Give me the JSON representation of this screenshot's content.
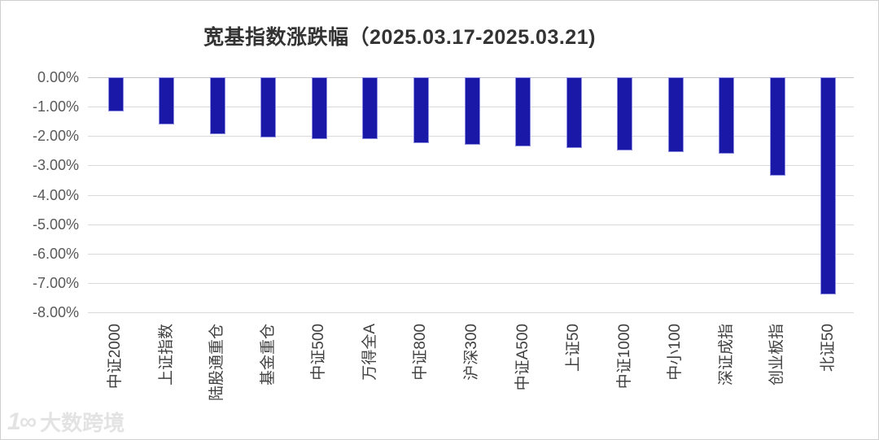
{
  "title": "宽基指数涨跌幅（2025.03.17-2025.03.21)",
  "watermark": {
    "logo": "1∞",
    "text": "大数跨境"
  },
  "chart_data": {
    "type": "bar",
    "title": "宽基指数涨跌幅（2025.03.17-2025.03.21)",
    "categories": [
      "中证2000",
      "上证指数",
      "陆股通重仓",
      "基金重仓",
      "中证500",
      "万得全A",
      "中证800",
      "沪深300",
      "中证A500",
      "上证50",
      "中证1000",
      "中小100",
      "深证成指",
      "创业板指",
      "北证50"
    ],
    "values": [
      -1.15,
      -1.6,
      -1.95,
      -2.05,
      -2.1,
      -2.1,
      -2.25,
      -2.3,
      -2.35,
      -2.4,
      -2.5,
      -2.55,
      -2.6,
      -3.35,
      -7.4
    ],
    "value_unit": "%",
    "xlabel": "",
    "ylabel": "",
    "ylim": [
      -8,
      0
    ],
    "ytick_labels": [
      "0.00%",
      "-1.00%",
      "-2.00%",
      "-3.00%",
      "-4.00%",
      "-5.00%",
      "-6.00%",
      "-7.00%",
      "-8.00%"
    ],
    "grid": true,
    "legend_position": "none",
    "bar_color": "#1a18a6",
    "bar_border_color": "#8d8de0",
    "gridline_color": "#d9d9d9",
    "ytick_color": "#595959",
    "category_label_color": "#404040",
    "category_label_rotation": -90
  }
}
